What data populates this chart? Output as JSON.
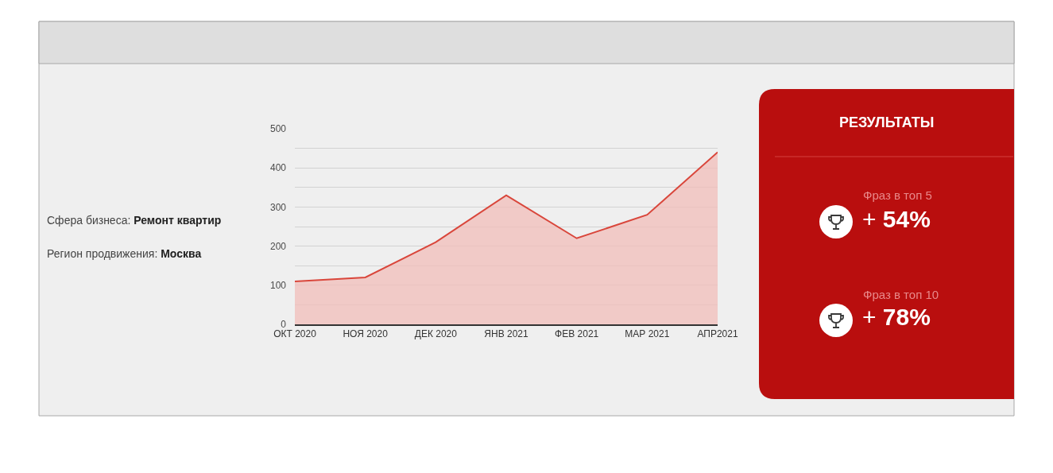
{
  "chart_data": [
    {
      "type": "area",
      "categories": [
        "ОКТ 2020",
        "НОЯ 2020",
        "ДЕК 2020",
        "ЯНВ 2021",
        "ФЕВ 2021",
        "МАР 2021",
        "АПР2021"
      ],
      "series": [
        {
          "color": "#d9463b",
          "values": [
            110,
            120,
            210,
            330,
            220,
            280,
            440
          ]
        }
      ],
      "ylim": [
        0,
        500
      ],
      "yticks": [
        0,
        {
          "value": 50,
          "label": null
        },
        100,
        {
          "value": 150,
          "label": null
        },
        200,
        {
          "value": 250,
          "label": null
        },
        300,
        {
          "value": 350,
          "label": null
        },
        400,
        {
          "value": 450,
          "label": null
        },
        500
      ],
      "grid": "y",
      "annotations": [
        "Сфера бизнеса: Ремонт квартир",
        "Регион продвижения: Москва"
      ]
    },
    {
      "type": "other",
      "title": "РЕЗУЛЬТАТЫ",
      "annotations": [
        "Фраз в топ 5",
        "+ 54%",
        "Фраз в топ 10",
        "+ 78%"
      ]
    }
  ]
}
